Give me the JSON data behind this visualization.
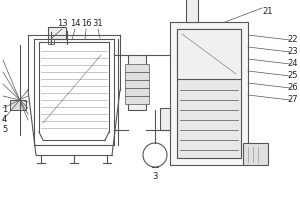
{
  "bg_color": "#ffffff",
  "line_color": "#555555",
  "label_color": "#222222",
  "fig_width": 3.0,
  "fig_height": 2.0,
  "dpi": 100
}
